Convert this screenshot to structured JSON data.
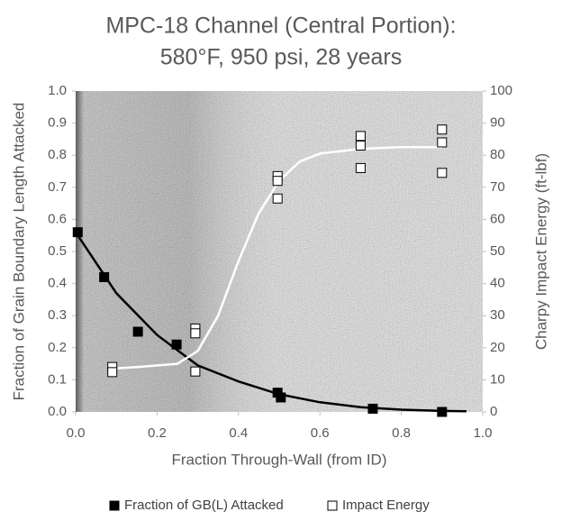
{
  "chart_data": {
    "type": "scatter",
    "title": "MPC-18 Channel (Central Portion):",
    "subtitle": "580°F, 950 psi, 28 years",
    "x_label": "Fraction Through-Wall (from ID)",
    "y_label": "Fraction of Grain Boundary Length Attacked",
    "y2_label": "Charpy Impact Energy (ft-lbf)",
    "xlim": [
      0,
      1
    ],
    "xticks": [
      {
        "value": 0,
        "label": "0.0"
      },
      0.2,
      0.4,
      0.6,
      0.8,
      {
        "value": 1,
        "label": "1.0"
      }
    ],
    "ylim": [
      0,
      1
    ],
    "yticks": [
      {
        "value": 0,
        "label": "0.0"
      },
      0.1,
      0.2,
      0.3,
      0.4,
      0.5,
      0.6,
      0.7,
      0.8,
      0.9,
      {
        "value": 1,
        "label": "1.0"
      }
    ],
    "y2lim": [
      0,
      100
    ],
    "y2ticks": [
      0,
      10,
      20,
      30,
      40,
      50,
      60,
      70,
      80,
      90,
      100
    ],
    "legend": "bottom",
    "series": [
      {
        "name": "Fraction of GB(L) Attacked",
        "color": "#000000",
        "marker_fill": "#000000",
        "x": [
          0.005,
          0.07,
          0.153,
          0.248,
          0.496,
          0.504,
          0.73,
          0.9
        ],
        "values": [
          0.56,
          0.42,
          0.25,
          0.21,
          0.06,
          0.045,
          0.01,
          0.0
        ]
      },
      {
        "name": "Impact Energy",
        "color": "#000000",
        "marker_fill": "#ffffff",
        "axis": "y2",
        "x": [
          0.09,
          0.09,
          0.294,
          0.294,
          0.294,
          0.496,
          0.496,
          0.496,
          0.7,
          0.7,
          0.7,
          0.9,
          0.9,
          0.9
        ],
        "values": [
          14,
          12.4,
          26,
          24.5,
          12.6,
          73.5,
          72,
          66.5,
          86,
          83,
          76,
          88,
          84,
          74.5
        ]
      }
    ],
    "curves": [
      {
        "color": "#000000",
        "x": [
          0,
          0.1,
          0.2,
          0.3,
          0.4,
          0.5,
          0.6,
          0.7,
          0.8,
          0.9,
          0.96
        ],
        "values": [
          0.56,
          0.37,
          0.24,
          0.145,
          0.095,
          0.055,
          0.03,
          0.015,
          0.007,
          0.003,
          0.002
        ]
      },
      {
        "color": "#ffffff",
        "axis": "y2",
        "x": [
          0.09,
          0.15,
          0.25,
          0.3,
          0.35,
          0.4,
          0.45,
          0.5,
          0.55,
          0.6,
          0.7,
          0.8,
          0.9
        ],
        "values": [
          13.5,
          14,
          15,
          19,
          30,
          47,
          62,
          72,
          78,
          80.5,
          82,
          82.5,
          82.5
        ]
      }
    ]
  }
}
